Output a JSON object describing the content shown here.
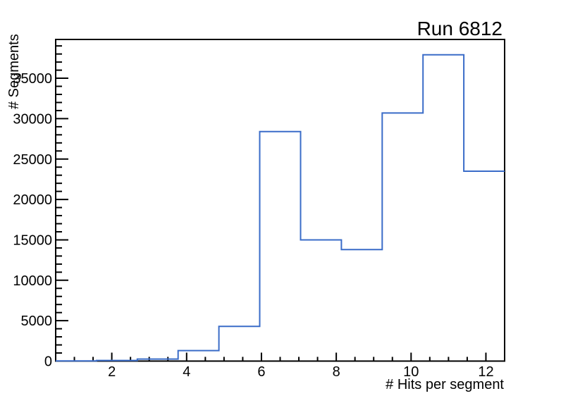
{
  "page": {
    "background_color": "#ffffff"
  },
  "chart_data": {
    "type": "histogram",
    "title": "Run 6812",
    "xlabel": "# Hits per segment",
    "ylabel": "# Segments",
    "x_range": [
      0.5,
      12.5
    ],
    "y_range": [
      0,
      39800
    ],
    "bin_edges": [
      0.5,
      1.5909,
      2.6818,
      3.7727,
      4.8636,
      5.9545,
      7.0455,
      8.1364,
      9.2273,
      10.3182,
      11.4091,
      12.5
    ],
    "bin_counts": [
      20,
      80,
      250,
      1300,
      4300,
      28400,
      15000,
      13800,
      30700,
      37900,
      23500
    ],
    "x_major_ticks": [
      2,
      4,
      6,
      8,
      10,
      12
    ],
    "x_minor_tick_step": 0.5,
    "y_major_ticks": [
      0,
      5000,
      10000,
      15000,
      20000,
      25000,
      30000,
      35000
    ],
    "y_minor_tick_step": 1000,
    "line_color": "#3a6cc8",
    "axis_color": "#000000",
    "grid": false,
    "legend_position": "none",
    "tick_direction": "inside"
  }
}
